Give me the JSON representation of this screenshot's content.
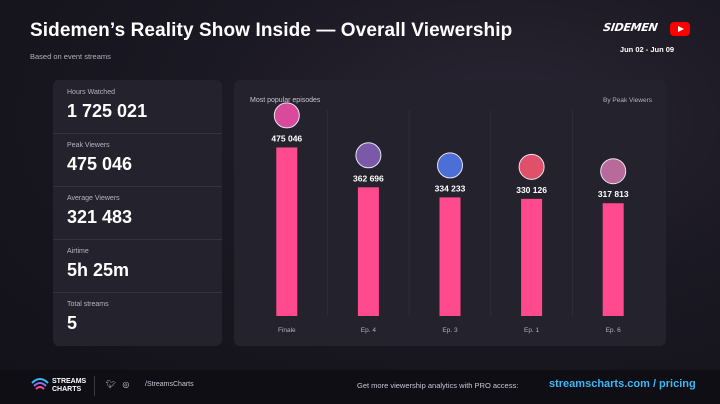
{
  "header": {
    "title": "Sidemen’s Reality Show Inside — Overall Viewership",
    "subtitle": "Based on event streams",
    "brand": "SIDEMEN",
    "date_range": "Jun 02 - Jun 09"
  },
  "stats": [
    {
      "label": "Hours Watched",
      "value": "1 725 021"
    },
    {
      "label": "Peak Viewers",
      "value": "475 046"
    },
    {
      "label": "Average Viewers",
      "value": "321 483"
    },
    {
      "label": "Airtime",
      "value": "5h 25m"
    },
    {
      "label": "Total streams",
      "value": "5"
    }
  ],
  "panel": {
    "heading": "Most popular episodes",
    "sort_label": "By Peak Viewers"
  },
  "chart_data": {
    "type": "bar",
    "categories": [
      "Finale",
      "Ep. 4",
      "Ep. 3",
      "Ep. 1",
      "Ep. 6"
    ],
    "values": [
      475046,
      362696,
      334233,
      330126,
      317813
    ],
    "value_labels": [
      "475 046",
      "362 696",
      "334 233",
      "330 126",
      "317 813"
    ],
    "ylim": [
      0,
      620000
    ],
    "grid": false,
    "bar_color": "#ff4a8d"
  },
  "footer": {
    "logo_line1": "STREAMS",
    "logo_line2": "CHARTS",
    "social_handle": "/StreamsCharts",
    "promo_text": "Get more viewership analytics with PRO access:",
    "link_text": "streamscharts.com / pricing"
  },
  "colors": {
    "background": "#14131c",
    "panel": "#24222d",
    "bar": "#ff4a8d",
    "link": "#3ab8f5",
    "youtube": "#ff0000"
  }
}
